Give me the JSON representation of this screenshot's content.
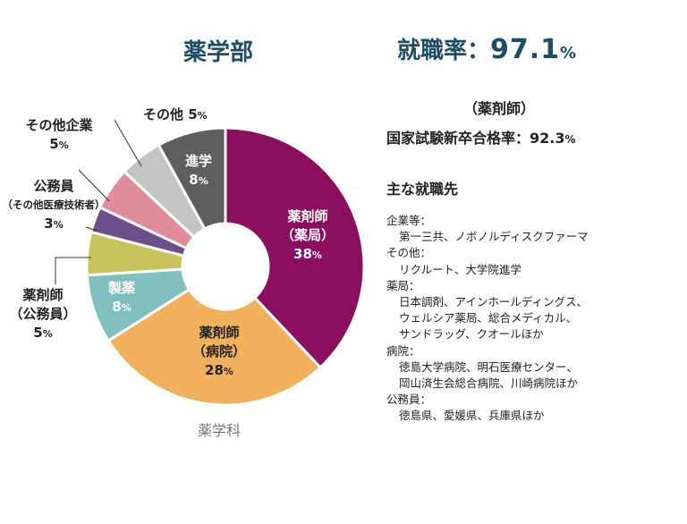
{
  "header": {
    "department_title": "薬学部",
    "employment_rate_label": "就職率：",
    "employment_rate_value": "97.1",
    "employment_rate_unit": "%"
  },
  "pharmacist": {
    "heading": "（薬剤師）",
    "pass_rate_label": "国家試験新卒合格率：",
    "pass_rate_value": "92.3",
    "pass_rate_unit": "%"
  },
  "employers": {
    "heading": "主な就職先",
    "groups": [
      {
        "category": "企業等：",
        "names": [
          "第一三共、ノボノルディスクファーマ"
        ]
      },
      {
        "category": "その他：",
        "names": [
          "リクルート、大学院進学"
        ]
      },
      {
        "category": "薬局：",
        "names": [
          "日本調剤、アインホールディングス、",
          "ウェルシア薬局、総合メディカル、",
          "サンドラッグ、クオールほか"
        ]
      },
      {
        "category": "病院：",
        "names": [
          "徳島大学病院、明石医療センター、",
          "岡山済生会総合病院、川崎病院ほか"
        ]
      },
      {
        "category": "公務員：",
        "names": [
          "徳島県、愛媛県、兵庫県ほか"
        ]
      }
    ]
  },
  "chart_data": {
    "type": "pie",
    "title": "",
    "center_caption": "薬学科",
    "unit": "%",
    "slices": [
      {
        "label": "薬剤師（薬局）",
        "lines": [
          "薬剤師",
          "（薬局）"
        ],
        "value": 38,
        "color": "#8b0f5e"
      },
      {
        "label": "薬剤師（病院）",
        "lines": [
          "薬剤師",
          "（病院）"
        ],
        "value": 28,
        "color": "#f1b15c"
      },
      {
        "label": "製薬",
        "lines": [
          "製薬"
        ],
        "value": 8,
        "color": "#7fc0bf"
      },
      {
        "label": "薬剤師（公務員）",
        "lines": [
          "薬剤師",
          "（公務員）"
        ],
        "value": 5,
        "color": "#c8c25a"
      },
      {
        "label": "公務員（その他医療技術者）",
        "lines": [
          "公務員",
          "（その他医療技術者）"
        ],
        "value": 3,
        "color": "#6b5089"
      },
      {
        "label": "その他企業",
        "lines": [
          "その他企業"
        ],
        "value": 5,
        "color": "#df8d98"
      },
      {
        "label": "その他",
        "lines": [
          "その他"
        ],
        "value": 5,
        "color": "#c4c4c4"
      },
      {
        "label": "進学",
        "lines": [
          "進学"
        ],
        "value": 8,
        "color": "#5e5e5e"
      }
    ]
  }
}
